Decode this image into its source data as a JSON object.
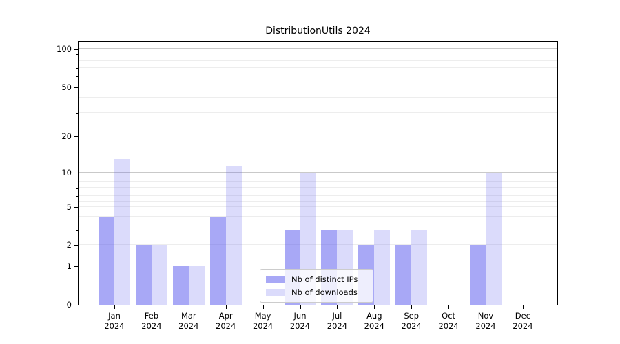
{
  "figure": {
    "title": "DistributionUtils 2024"
  },
  "chart_data": {
    "type": "bar",
    "title": "DistributionUtils 2024",
    "x_months": [
      "Jan",
      "Feb",
      "Mar",
      "Apr",
      "May",
      "Jun",
      "Jul",
      "Aug",
      "Sep",
      "Oct",
      "Nov",
      "Dec"
    ],
    "x_year": "2024",
    "series": [
      {
        "name": "Nb of distinct IPs",
        "color": "rgba(85,85,238,0.51)",
        "values": [
          4,
          2,
          1,
          4,
          0,
          3,
          3,
          2,
          2,
          0,
          2,
          0
        ]
      },
      {
        "name": "Nb of downloads",
        "color": "rgba(85,85,238,0.21)",
        "values": [
          13,
          2,
          1,
          11,
          0,
          10,
          3,
          3,
          3,
          0,
          10,
          0
        ]
      }
    ],
    "yscale": "symlog",
    "ylim": [
      0,
      100
    ],
    "yticks_labeled": [
      0,
      1,
      2,
      5,
      10,
      20,
      50,
      100
    ],
    "gridlines_major": [
      1,
      10,
      100
    ],
    "gridlines_minor": [
      2,
      3,
      4,
      5,
      6,
      7,
      8,
      9,
      20,
      30,
      40,
      50,
      60,
      70,
      80,
      90
    ],
    "grid": true,
    "legend_position": "lower center"
  },
  "legend": {
    "items": [
      {
        "label": "Nb of distinct IPs",
        "swatch_color": "rgba(85,85,238,0.51)"
      },
      {
        "label": "Nb of downloads",
        "swatch_color": "rgba(85,85,238,0.21)"
      }
    ]
  },
  "colors": {
    "bar_distinct_ips_effective": "#a9a9f7",
    "bar_downloads_effective": "#dcdcf9",
    "gridline_major": "#c9c9c9",
    "gridline_minor": "#ededed",
    "axis": "#000000",
    "legend_border": "#cccccc",
    "background": "#ffffff"
  }
}
